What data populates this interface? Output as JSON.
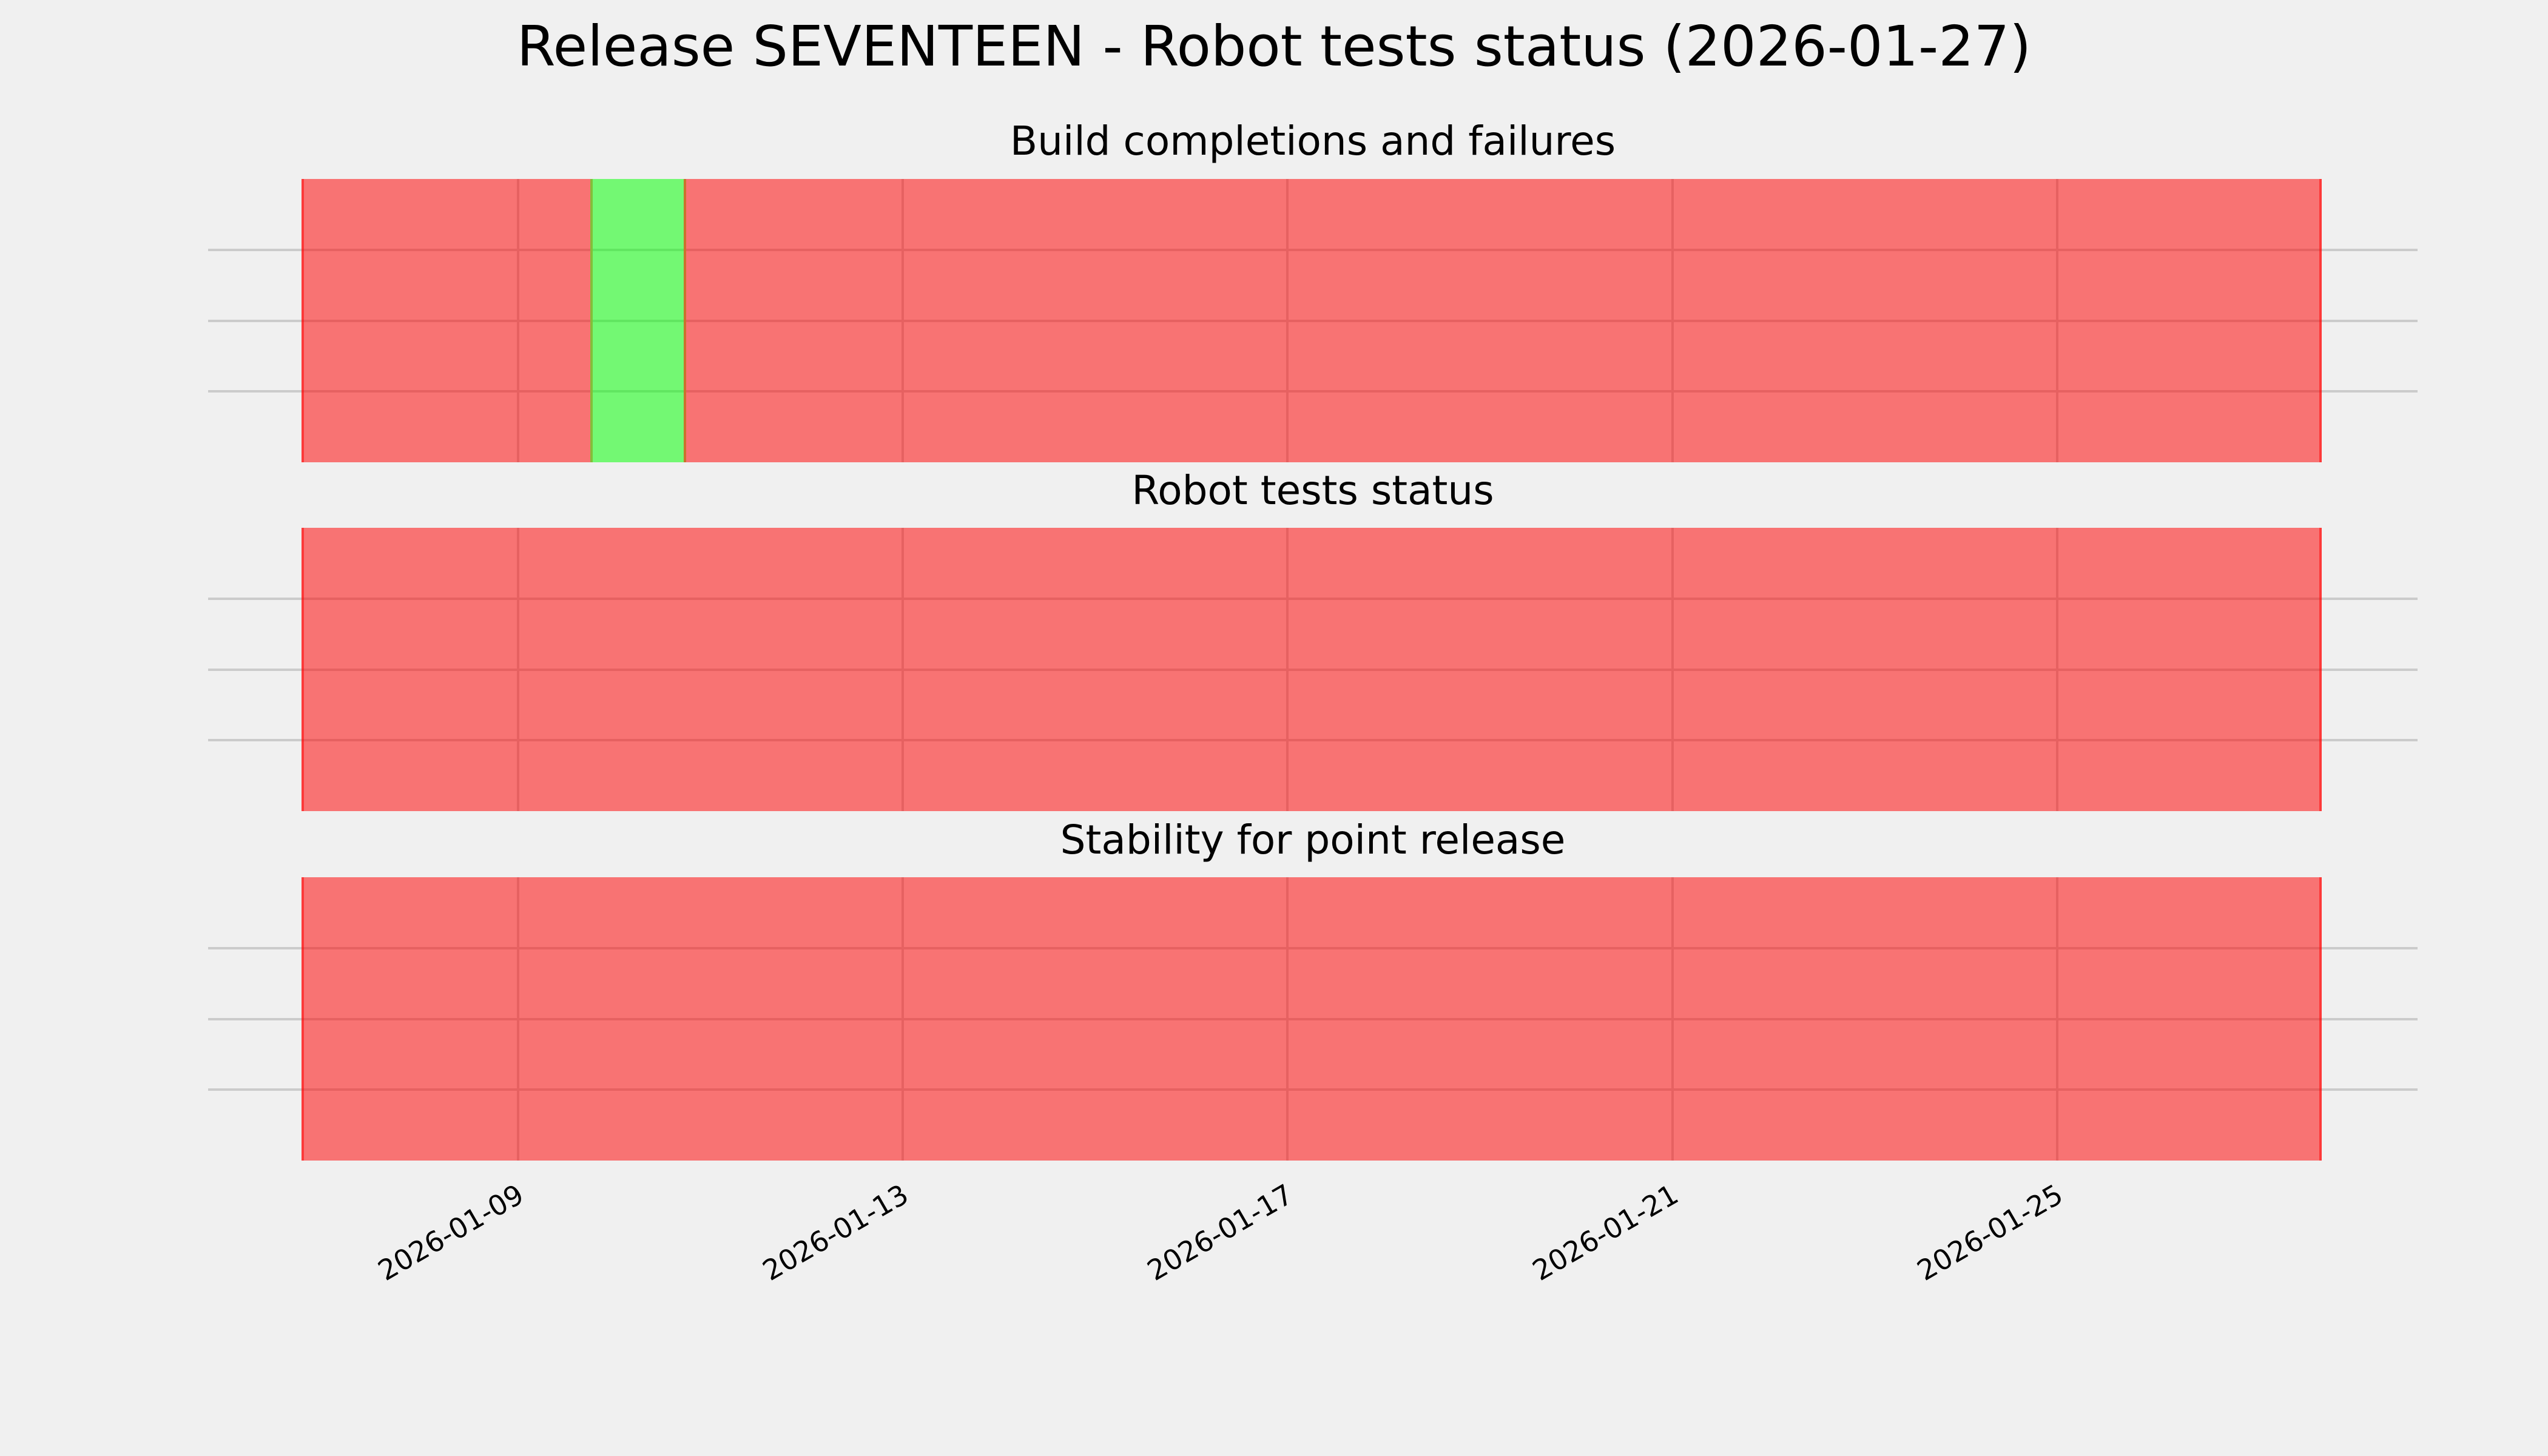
{
  "figure": {
    "title": "Release SEVENTEEN - Robot tests status (2026-01-27)",
    "background_color": "#f0f0f0",
    "grid_color": "#cbcbcb",
    "text_color": "#000000",
    "fail_color": "rgba(255,0,0,0.52)",
    "pass_color": "rgba(0,255,0,0.52)",
    "fail_color_rendered": "#f87474",
    "pass_color_rendered": "#74f874"
  },
  "x_axis": {
    "tick_labels": [
      "2026-01-09",
      "2026-01-13",
      "2026-01-17",
      "2026-01-21",
      "2026-01-25"
    ],
    "label_rotation_deg": 30,
    "first_day": "2026-01-07",
    "last_day": "2026-01-27",
    "num_days": 21
  },
  "chart_data": [
    {
      "type": "bar",
      "title": "Build completions and failures",
      "ylim": [
        0,
        1
      ],
      "bar_height": 1,
      "grid_y": [
        0.25,
        0.5,
        0.75
      ],
      "legend": "none",
      "dates": [
        "2026-01-07",
        "2026-01-08",
        "2026-01-09",
        "2026-01-10",
        "2026-01-11",
        "2026-01-12",
        "2026-01-13",
        "2026-01-14",
        "2026-01-15",
        "2026-01-16",
        "2026-01-17",
        "2026-01-18",
        "2026-01-19",
        "2026-01-20",
        "2026-01-21",
        "2026-01-22",
        "2026-01-23",
        "2026-01-24",
        "2026-01-25",
        "2026-01-26",
        "2026-01-27"
      ],
      "status": [
        "fail",
        "fail",
        "fail",
        "pass",
        "fail",
        "fail",
        "fail",
        "fail",
        "fail",
        "fail",
        "fail",
        "fail",
        "fail",
        "fail",
        "fail",
        "fail",
        "fail",
        "fail",
        "fail",
        "fail",
        "fail"
      ]
    },
    {
      "type": "bar",
      "title": "Robot tests status",
      "ylim": [
        0,
        1
      ],
      "bar_height": 1,
      "grid_y": [
        0.25,
        0.5,
        0.75
      ],
      "legend": "none",
      "dates": [
        "2026-01-07",
        "2026-01-08",
        "2026-01-09",
        "2026-01-10",
        "2026-01-11",
        "2026-01-12",
        "2026-01-13",
        "2026-01-14",
        "2026-01-15",
        "2026-01-16",
        "2026-01-17",
        "2026-01-18",
        "2026-01-19",
        "2026-01-20",
        "2026-01-21",
        "2026-01-22",
        "2026-01-23",
        "2026-01-24",
        "2026-01-25",
        "2026-01-26",
        "2026-01-27"
      ],
      "status": [
        "fail",
        "fail",
        "fail",
        "fail",
        "fail",
        "fail",
        "fail",
        "fail",
        "fail",
        "fail",
        "fail",
        "fail",
        "fail",
        "fail",
        "fail",
        "fail",
        "fail",
        "fail",
        "fail",
        "fail",
        "fail"
      ]
    },
    {
      "type": "bar",
      "title": "Stability for point release",
      "ylim": [
        0,
        1
      ],
      "bar_height": 1,
      "grid_y": [
        0.25,
        0.5,
        0.75
      ],
      "legend": "none",
      "dates": [
        "2026-01-07",
        "2026-01-08",
        "2026-01-09",
        "2026-01-10",
        "2026-01-11",
        "2026-01-12",
        "2026-01-13",
        "2026-01-14",
        "2026-01-15",
        "2026-01-16",
        "2026-01-17",
        "2026-01-18",
        "2026-01-19",
        "2026-01-20",
        "2026-01-21",
        "2026-01-22",
        "2026-01-23",
        "2026-01-24",
        "2026-01-25",
        "2026-01-26",
        "2026-01-27"
      ],
      "status": [
        "fail",
        "fail",
        "fail",
        "fail",
        "fail",
        "fail",
        "fail",
        "fail",
        "fail",
        "fail",
        "fail",
        "fail",
        "fail",
        "fail",
        "fail",
        "fail",
        "fail",
        "fail",
        "fail",
        "fail",
        "fail"
      ]
    }
  ]
}
